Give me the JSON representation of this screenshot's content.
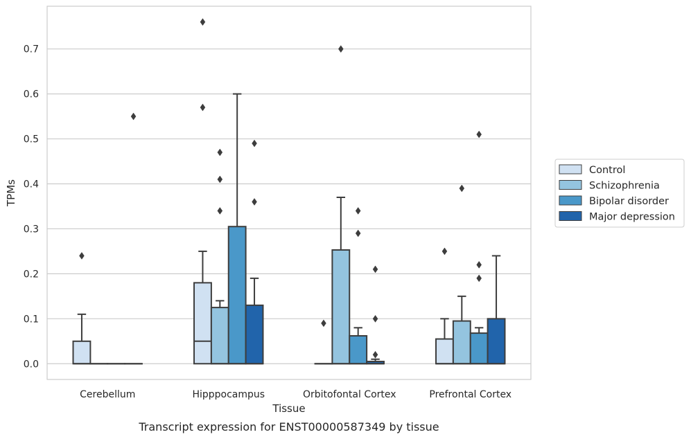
{
  "chart_data": {
    "type": "box",
    "caption": "Transcript expression for ENST00000587349 by tissue",
    "xlabel": "Tissue",
    "ylabel": "TPMs",
    "ylim": [
      -0.035,
      0.795
    ],
    "yticks": [
      0.0,
      0.1,
      0.2,
      0.3,
      0.4,
      0.5,
      0.6,
      0.7
    ],
    "ytick_labels": [
      "0.0",
      "0.1",
      "0.2",
      "0.3",
      "0.4",
      "0.5",
      "0.6",
      "0.7"
    ],
    "grid": "horizontal",
    "legend_position": "right",
    "categories": [
      "Cerebellum",
      "Hipppocampus",
      "Orbitofontal Cortex",
      "Prefrontal Cortex"
    ],
    "series": [
      {
        "name": "Control",
        "color": "#d0e1f2",
        "boxes": [
          {
            "whisker_low": 0.0,
            "q1": 0.0,
            "median": 0.0,
            "q3": 0.05,
            "whisker_high": 0.11,
            "outliers": [
              0.24
            ]
          },
          {
            "whisker_low": 0.0,
            "q1": 0.0,
            "median": 0.05,
            "q3": 0.18,
            "whisker_high": 0.25,
            "outliers": [
              0.57,
              0.76
            ]
          },
          {
            "whisker_low": 0.0,
            "q1": 0.0,
            "median": 0.0,
            "q3": 0.0,
            "whisker_high": 0.0,
            "outliers": [
              0.09
            ]
          },
          {
            "whisker_low": 0.0,
            "q1": 0.0,
            "median": 0.0,
            "q3": 0.055,
            "whisker_high": 0.1,
            "outliers": [
              0.25
            ]
          }
        ]
      },
      {
        "name": "Schizophrenia",
        "color": "#94c4df",
        "boxes": [
          {
            "whisker_low": 0.0,
            "q1": 0.0,
            "median": 0.0,
            "q3": 0.0,
            "whisker_high": 0.0,
            "outliers": []
          },
          {
            "whisker_low": 0.0,
            "q1": 0.0,
            "median": 0.0,
            "q3": 0.125,
            "whisker_high": 0.14,
            "outliers": [
              0.34,
              0.41,
              0.47
            ]
          },
          {
            "whisker_low": 0.0,
            "q1": 0.0,
            "median": 0.0,
            "q3": 0.253,
            "whisker_high": 0.37,
            "outliers": [
              0.7
            ]
          },
          {
            "whisker_low": 0.0,
            "q1": 0.0,
            "median": 0.0,
            "q3": 0.095,
            "whisker_high": 0.15,
            "outliers": [
              0.39
            ]
          }
        ]
      },
      {
        "name": "Bipolar disorder",
        "color": "#4a98c9",
        "boxes": [
          {
            "whisker_low": 0.0,
            "q1": 0.0,
            "median": 0.0,
            "q3": 0.0,
            "whisker_high": 0.0,
            "outliers": []
          },
          {
            "whisker_low": 0.0,
            "q1": 0.0,
            "median": 0.0,
            "q3": 0.305,
            "whisker_high": 0.6,
            "outliers": []
          },
          {
            "whisker_low": 0.0,
            "q1": 0.0,
            "median": 0.0,
            "q3": 0.062,
            "whisker_high": 0.08,
            "outliers": [
              0.29,
              0.34
            ]
          },
          {
            "whisker_low": 0.0,
            "q1": 0.0,
            "median": 0.0,
            "q3": 0.068,
            "whisker_high": 0.08,
            "outliers": [
              0.19,
              0.22,
              0.51
            ]
          }
        ]
      },
      {
        "name": "Major depression",
        "color": "#2164ab",
        "boxes": [
          {
            "whisker_low": 0.0,
            "q1": 0.0,
            "median": 0.0,
            "q3": 0.0,
            "whisker_high": 0.0,
            "outliers": [
              0.55
            ]
          },
          {
            "whisker_low": 0.0,
            "q1": 0.0,
            "median": 0.0,
            "q3": 0.13,
            "whisker_high": 0.19,
            "outliers": [
              0.36,
              0.49
            ]
          },
          {
            "whisker_low": 0.0,
            "q1": 0.0,
            "median": 0.0,
            "q3": 0.005,
            "whisker_high": 0.01,
            "outliers": [
              0.02,
              0.1,
              0.21
            ]
          },
          {
            "whisker_low": 0.0,
            "q1": 0.0,
            "median": 0.0,
            "q3": 0.1,
            "whisker_high": 0.24,
            "outliers": []
          }
        ]
      }
    ]
  }
}
